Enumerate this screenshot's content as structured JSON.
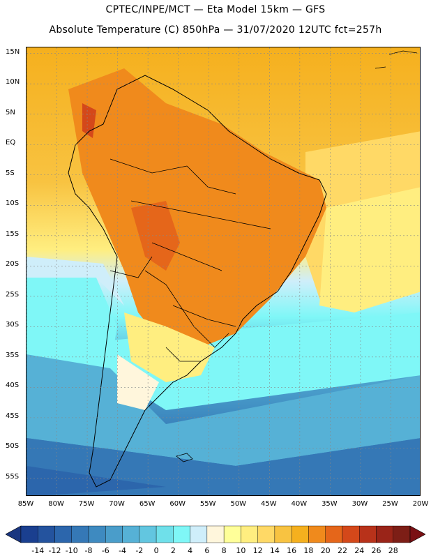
{
  "header": {
    "line1": "CPTEC/INPE/MCT —  Eta Model 15km — GFS",
    "line2": "Absolute Temperature (C) 850hPa — 31/07/2020 12UTC fct=257h"
  },
  "map": {
    "lat_labels": [
      "15N",
      "10N",
      "5N",
      "EQ",
      "5S",
      "10S",
      "15S",
      "20S",
      "25S",
      "30S",
      "35S",
      "40S",
      "45S",
      "50S",
      "55S"
    ],
    "lat_values": [
      15,
      10,
      5,
      0,
      -5,
      -10,
      -15,
      -20,
      -25,
      -30,
      -35,
      -40,
      -45,
      -50,
      -55
    ],
    "lon_labels": [
      "85W",
      "80W",
      "75W",
      "70W",
      "65W",
      "60W",
      "55W",
      "50W",
      "45W",
      "40W",
      "35W",
      "30W",
      "25W",
      "20W"
    ],
    "lon_values": [
      -85,
      -80,
      -75,
      -70,
      -65,
      -60,
      -55,
      -50,
      -45,
      -40,
      -35,
      -30,
      -25,
      -20
    ],
    "extent": {
      "lon_min": -85,
      "lon_max": -20,
      "lat_min": -58,
      "lat_max": 16
    }
  },
  "colorbar": {
    "labels": [
      "-14",
      "-12",
      "-10",
      "-8",
      "-6",
      "-4",
      "-2",
      "0",
      "2",
      "4",
      "6",
      "8",
      "10",
      "12",
      "14",
      "16",
      "18",
      "20",
      "22",
      "24",
      "26",
      "28"
    ],
    "colors": [
      "#1a3f8f",
      "#24539e",
      "#2c66ac",
      "#3578b6",
      "#3e8ac0",
      "#4a9dca",
      "#56b1d6",
      "#62c6e0",
      "#6fe0ea",
      "#7ff7f7",
      "#cfeefa",
      "#fff6dc",
      "#ffff99",
      "#ffee80",
      "#ffd966",
      "#f8c341",
      "#f5b01e",
      "#f08a1c",
      "#e5661a",
      "#d4481a",
      "#b8321a",
      "#9a2418",
      "#7d1e16"
    ],
    "under_color": "#1a3680",
    "over_color": "#7a1014"
  }
}
